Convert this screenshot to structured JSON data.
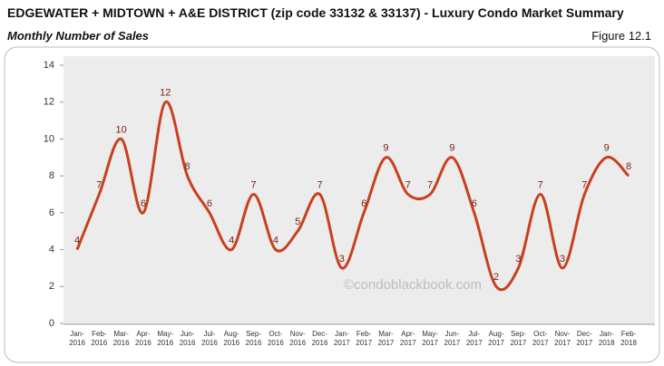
{
  "chart_data": {
    "type": "line",
    "title": "EDGEWATER + MIDTOWN + A&E DISTRICT (zip code 33132 & 33137) - Luxury Condo Market Summary",
    "subtitle": "Monthly Number of Sales",
    "figure_label": "Figure 12.1",
    "watermark": "©condoblackbook.com",
    "categories": [
      "Jan-2016",
      "Feb-2016",
      "Mar-2016",
      "Apr-2016",
      "May-2016",
      "Jun-2016",
      "Jul-2016",
      "Aug-2016",
      "Sep-2016",
      "Oct-2016",
      "Nov-2016",
      "Dec-2016",
      "Jan-2017",
      "Feb-2017",
      "Mar-2017",
      "Apr-2017",
      "May-2017",
      "Jun-2017",
      "Jul-2017",
      "Aug-2017",
      "Sep-2017",
      "Oct-2017",
      "Nov-2017",
      "Dec-2017",
      "Jan-2018",
      "Feb-2018"
    ],
    "values": [
      4,
      7,
      10,
      6,
      12,
      8,
      6,
      4,
      7,
      4,
      5,
      7,
      3,
      6,
      9,
      7,
      7,
      9,
      6,
      2,
      3,
      7,
      3,
      7,
      9,
      8
    ],
    "color": "#c8401e",
    "label_color": "#7a1f12",
    "ylim": [
      0,
      14
    ],
    "yticks": [
      0,
      2,
      4,
      6,
      8,
      10,
      12,
      14
    ],
    "grid": false
  }
}
